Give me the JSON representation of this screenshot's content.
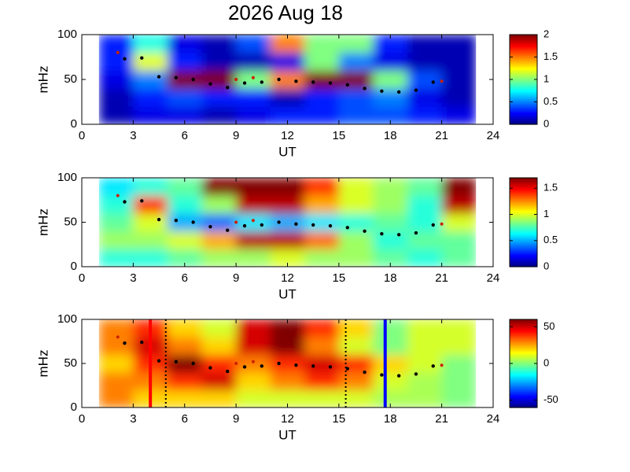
{
  "chart_data": [
    {
      "type": "heatmap",
      "title": "2026 Aug 18",
      "xlabel": "UT",
      "ylabel": "mHz",
      "xlim": [
        0,
        24
      ],
      "xticks": [
        0,
        3,
        6,
        9,
        12,
        15,
        18,
        21,
        24
      ],
      "ylim": [
        0,
        100
      ],
      "yticks": [
        0,
        50,
        100
      ],
      "colormap": "jet",
      "clim": [
        0,
        2
      ],
      "cticks": [
        0,
        0.5,
        1,
        1.5,
        2
      ],
      "x_edges": [
        1,
        3,
        5,
        7,
        9,
        11,
        13,
        15,
        17,
        19,
        21,
        23
      ],
      "y_edges": [
        0,
        20,
        40,
        60,
        80,
        100
      ],
      "z": [
        [
          0.1,
          0.2,
          0.2,
          0.1,
          0.2,
          0.3,
          0.3,
          0.4,
          0.4,
          0.3,
          0.2
        ],
        [
          0.1,
          0.3,
          0.4,
          0.3,
          0.3,
          0.1,
          0.3,
          0.4,
          0.5,
          0.2,
          0.1
        ],
        [
          0.2,
          0.5,
          2,
          2,
          1,
          1.5,
          2,
          2,
          1,
          0.4,
          0.1
        ],
        [
          0.3,
          1.2,
          0.3,
          0.1,
          0.1,
          0.2,
          1,
          0.5,
          0.2,
          0.1,
          0.1
        ],
        [
          0.3,
          0.8,
          0.2,
          0.1,
          0.4,
          1.5,
          1,
          1,
          0.3,
          0.1,
          0.1
        ]
      ],
      "trace": {
        "color": "#000000",
        "x": [
          2.5,
          3.5,
          4.5,
          5.5,
          6.5,
          7.5,
          8.5,
          9.5,
          10.5,
          11.5,
          12.5,
          13.5,
          14.5,
          15.5,
          16.5,
          17.5,
          18.5,
          19.5,
          20.5
        ],
        "y": [
          73,
          74,
          53,
          52,
          50,
          45,
          41,
          46,
          47,
          50,
          48,
          47,
          46,
          44,
          40,
          37,
          36,
          38,
          47
        ]
      },
      "marks": {
        "color": "#cc2200",
        "x": [
          2.1,
          9,
          10,
          21
        ],
        "y": [
          80,
          50,
          52,
          48
        ]
      }
    },
    {
      "type": "heatmap",
      "xlabel": "UT",
      "ylabel": "mHz",
      "xlim": [
        0,
        24
      ],
      "xticks": [
        0,
        3,
        6,
        9,
        12,
        15,
        18,
        21,
        24
      ],
      "ylim": [
        0,
        100
      ],
      "yticks": [
        0,
        50,
        100
      ],
      "colormap": "jet",
      "clim": [
        0,
        1.7
      ],
      "cticks": [
        0,
        0.5,
        1,
        1.5
      ],
      "x_edges": [
        1,
        3,
        5,
        7,
        9,
        11,
        13,
        15,
        17,
        19,
        21,
        23
      ],
      "y_edges": [
        0,
        20,
        40,
        60,
        80,
        100
      ],
      "z": [
        [
          0.7,
          0.7,
          0.8,
          0.9,
          0.9,
          1.0,
          0.9,
          0.9,
          0.8,
          0.7,
          0.8
        ],
        [
          0.9,
          0.9,
          1.0,
          1.2,
          1.6,
          1.6,
          1.3,
          0.9,
          0.7,
          0.8,
          0.8
        ],
        [
          0.8,
          1.0,
          0.5,
          0.4,
          0.6,
          0.5,
          0.6,
          0.7,
          0.8,
          0.7,
          1.0
        ],
        [
          0.7,
          1.4,
          0.7,
          0.9,
          1.6,
          1.6,
          1.2,
          1.0,
          0.9,
          0.7,
          1.6
        ],
        [
          0.6,
          0.7,
          0.8,
          1.7,
          1.7,
          1.7,
          1.4,
          1.0,
          0.9,
          0.8,
          1.7
        ]
      ],
      "trace": {
        "color": "#000000",
        "x": [
          2.5,
          3.5,
          4.5,
          5.5,
          6.5,
          7.5,
          8.5,
          9.5,
          10.5,
          11.5,
          12.5,
          13.5,
          14.5,
          15.5,
          16.5,
          17.5,
          18.5,
          19.5,
          20.5
        ],
        "y": [
          73,
          74,
          53,
          52,
          50,
          45,
          41,
          46,
          47,
          50,
          48,
          47,
          46,
          44,
          40,
          37,
          36,
          38,
          47
        ]
      },
      "marks": {
        "color": "#cc2200",
        "x": [
          2.1,
          9,
          10,
          21
        ],
        "y": [
          80,
          50,
          52,
          48
        ]
      }
    },
    {
      "type": "heatmap",
      "xlabel": "UT",
      "ylabel": "mHz",
      "xlim": [
        0,
        24
      ],
      "xticks": [
        0,
        3,
        6,
        9,
        12,
        15,
        18,
        21,
        24
      ],
      "ylim": [
        0,
        100
      ],
      "yticks": [
        0,
        50,
        100
      ],
      "colormap": "jet",
      "clim": [
        -60,
        60
      ],
      "cticks": [
        -50,
        0,
        50
      ],
      "x_edges": [
        1,
        3,
        5,
        7,
        9,
        11,
        13,
        15,
        17,
        19,
        21,
        23
      ],
      "y_edges": [
        0,
        20,
        40,
        60,
        80,
        100
      ],
      "z": [
        [
          30,
          20,
          20,
          20,
          10,
          10,
          10,
          10,
          5,
          5,
          0
        ],
        [
          30,
          30,
          40,
          50,
          20,
          30,
          40,
          30,
          10,
          5,
          0
        ],
        [
          20,
          40,
          60,
          40,
          30,
          40,
          50,
          40,
          20,
          10,
          0
        ],
        [
          30,
          50,
          30,
          20,
          50,
          60,
          30,
          10,
          0,
          10,
          10
        ],
        [
          30,
          40,
          20,
          10,
          50,
          60,
          40,
          20,
          0,
          10,
          10
        ]
      ],
      "trace": {
        "color": "#000000",
        "x": [
          2.5,
          3.5,
          4.5,
          5.5,
          6.5,
          7.5,
          8.5,
          9.5,
          10.5,
          11.5,
          12.5,
          13.5,
          14.5,
          15.5,
          16.5,
          17.5,
          18.5,
          19.5,
          20.5
        ],
        "y": [
          73,
          74,
          53,
          52,
          50,
          45,
          41,
          46,
          47,
          50,
          48,
          47,
          46,
          44,
          40,
          37,
          36,
          38,
          47
        ]
      },
      "marks": {
        "color": "#cc2200",
        "x": [
          2.1,
          9,
          10,
          21
        ],
        "y": [
          80,
          50,
          52,
          48
        ]
      },
      "vlines": [
        {
          "x": 4,
          "color": "#ff0000",
          "style": "solid"
        },
        {
          "x": 4.9,
          "color": "#000000",
          "style": "dotted"
        },
        {
          "x": 15.4,
          "color": "#000000",
          "style": "dotted"
        },
        {
          "x": 17.7,
          "color": "#0000ff",
          "style": "solid"
        }
      ]
    }
  ]
}
